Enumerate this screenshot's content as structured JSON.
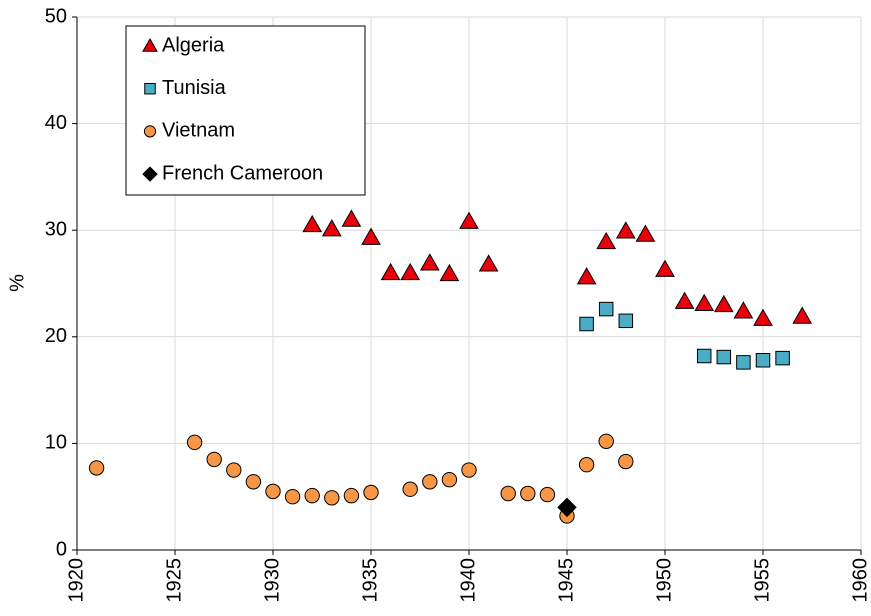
{
  "chart_data": {
    "type": "scatter",
    "y_label": "%",
    "xlim": [
      1920,
      1960
    ],
    "xticks": [
      1920,
      1925,
      1930,
      1935,
      1940,
      1945,
      1950,
      1955,
      1960
    ],
    "ylim": [
      0,
      50
    ],
    "yticks": [
      0,
      10,
      20,
      30,
      40,
      50
    ],
    "grid": true,
    "legend": "upper left",
    "series": [
      {
        "name": "Algeria",
        "color": "#e8000b",
        "marker": "triangle",
        "x": [
          1932,
          1933,
          1934,
          1935,
          1936,
          1937,
          1938,
          1939,
          1940,
          1941,
          1946,
          1947,
          1948,
          1949,
          1950,
          1951,
          1952,
          1953,
          1954,
          1955,
          1957
        ],
        "values": [
          30.5,
          30.1,
          31.0,
          29.3,
          26.0,
          26.0,
          26.9,
          25.9,
          30.8,
          26.8,
          25.6,
          28.9,
          29.9,
          29.6,
          26.3,
          23.3,
          23.1,
          23.0,
          22.4,
          21.7,
          21.9
        ]
      },
      {
        "name": "Tunisia",
        "color": "#4bacc6",
        "marker": "square",
        "x": [
          1946,
          1947,
          1948,
          1952,
          1953,
          1954,
          1955,
          1956
        ],
        "values": [
          21.2,
          22.6,
          21.5,
          18.2,
          18.1,
          17.6,
          17.8,
          18.0
        ]
      },
      {
        "name": "Vietnam",
        "color": "#f79646",
        "marker": "circle",
        "x": [
          1921,
          1926,
          1927,
          1928,
          1929,
          1930,
          1931,
          1932,
          1933,
          1934,
          1935,
          1937,
          1938,
          1939,
          1940,
          1942,
          1943,
          1944,
          1945,
          1946,
          1947,
          1948
        ],
        "values": [
          7.7,
          10.1,
          8.5,
          7.5,
          6.4,
          5.5,
          5.0,
          5.1,
          4.9,
          5.1,
          5.4,
          5.7,
          6.4,
          6.6,
          7.5,
          5.3,
          5.3,
          5.2,
          3.2,
          8.0,
          10.2,
          8.3
        ]
      },
      {
        "name": "French Cameroon",
        "color": "#000000",
        "marker": "diamond",
        "x": [
          1945
        ],
        "values": [
          4.0
        ]
      }
    ]
  }
}
